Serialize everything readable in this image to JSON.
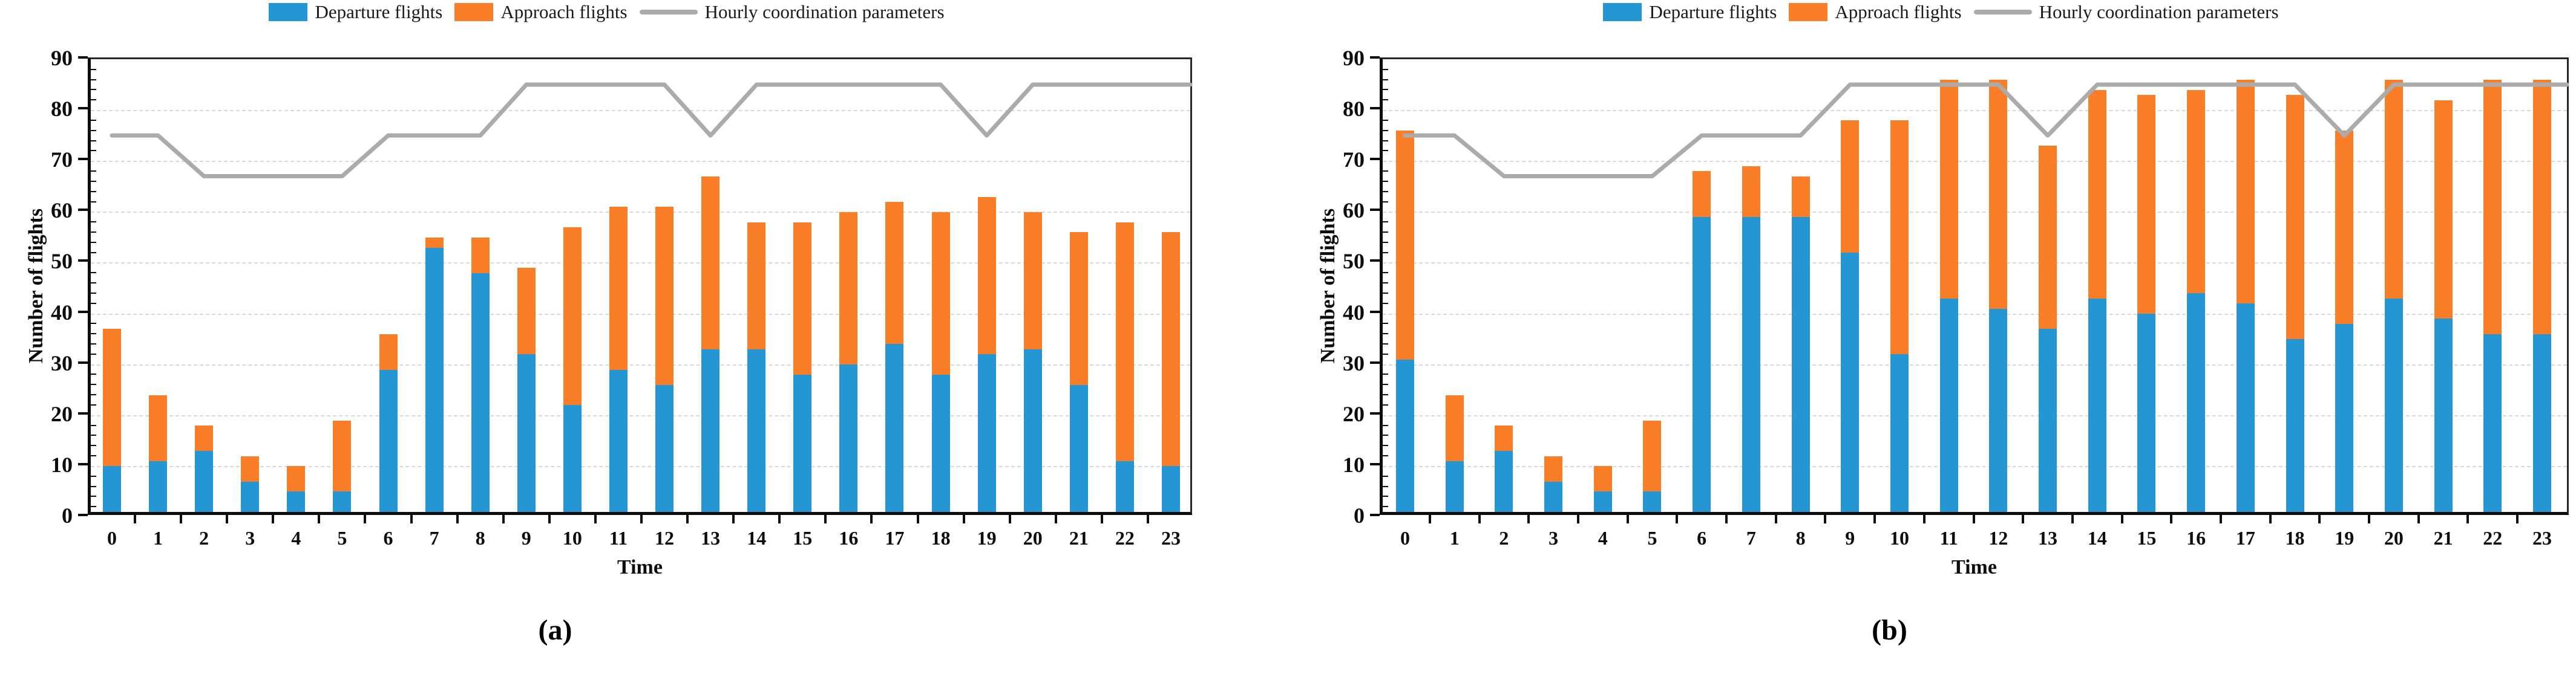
{
  "figure": {
    "background": "#ffffff",
    "accent_colors": {
      "departure_blue": "#2596D4",
      "approach_orange": "#F97E27",
      "parameter_gray": "#ABABAB"
    }
  },
  "chart_data": [
    {
      "type": "bar",
      "subtype": "stacked-bars-with-line",
      "caption": "(a)",
      "xlabel": "Time",
      "ylabel": "Number of flights",
      "ylim": [
        0,
        90
      ],
      "y_ticks": [
        0,
        10,
        20,
        30,
        40,
        50,
        60,
        70,
        80,
        90
      ],
      "grid": "horizontal dashed",
      "legend_position": "top-center",
      "categories": [
        "0",
        "1",
        "2",
        "3",
        "4",
        "5",
        "6",
        "7",
        "8",
        "9",
        "10",
        "11",
        "12",
        "13",
        "14",
        "15",
        "16",
        "17",
        "18",
        "19",
        "20",
        "21",
        "22",
        "23"
      ],
      "series": [
        {
          "name": "Departure flights",
          "type": "bar",
          "stacked": true,
          "color": "#2596D4",
          "values": [
            9,
            10,
            12,
            6,
            4,
            4,
            28,
            52,
            47,
            31,
            21,
            28,
            25,
            32,
            32,
            27,
            29,
            33,
            27,
            31,
            32,
            25,
            10,
            9
          ]
        },
        {
          "name": "Approach flights",
          "type": "bar",
          "stacked": true,
          "color": "#F97E27",
          "values": [
            27,
            13,
            5,
            5,
            5,
            14,
            7,
            2,
            7,
            17,
            35,
            32,
            35,
            34,
            25,
            30,
            30,
            28,
            32,
            31,
            27,
            30,
            47,
            46
          ]
        },
        {
          "name": "Hourly coordination parameters",
          "type": "line",
          "color": "#ABABAB",
          "values": [
            75,
            75,
            67,
            67,
            67,
            67,
            75,
            75,
            75,
            85,
            85,
            85,
            85,
            75,
            85,
            85,
            85,
            85,
            85,
            75,
            85,
            85,
            85,
            85
          ]
        }
      ],
      "stacked_totals": [
        36,
        23,
        17,
        11,
        9,
        18,
        35,
        54,
        54,
        48,
        56,
        60,
        60,
        66,
        57,
        57,
        59,
        61,
        59,
        62,
        59,
        55,
        57,
        55
      ]
    },
    {
      "type": "bar",
      "subtype": "stacked-bars-with-line",
      "caption": "(b)",
      "xlabel": "Time",
      "ylabel": "Number of flights",
      "ylim": [
        0,
        90
      ],
      "y_ticks": [
        0,
        10,
        20,
        30,
        40,
        50,
        60,
        70,
        80,
        90
      ],
      "grid": "horizontal dashed",
      "legend_position": "top-center",
      "categories": [
        "0",
        "1",
        "2",
        "3",
        "4",
        "5",
        "6",
        "7",
        "8",
        "9",
        "10",
        "11",
        "12",
        "13",
        "14",
        "15",
        "16",
        "17",
        "18",
        "19",
        "20",
        "21",
        "22",
        "23"
      ],
      "series": [
        {
          "name": "Departure flights",
          "type": "bar",
          "stacked": true,
          "color": "#2596D4",
          "values": [
            30,
            10,
            12,
            6,
            4,
            4,
            58,
            58,
            58,
            51,
            31,
            42,
            40,
            36,
            42,
            39,
            43,
            41,
            34,
            37,
            42,
            38,
            35,
            35
          ]
        },
        {
          "name": "Approach flights",
          "type": "bar",
          "stacked": true,
          "color": "#F97E27",
          "values": [
            45,
            13,
            5,
            5,
            5,
            14,
            9,
            10,
            8,
            26,
            46,
            43,
            45,
            36,
            41,
            43,
            40,
            44,
            48,
            38,
            43,
            43,
            50,
            50
          ]
        },
        {
          "name": "Hourly coordination parameters",
          "type": "line",
          "color": "#ABABAB",
          "values": [
            75,
            75,
            67,
            67,
            67,
            67,
            75,
            75,
            75,
            85,
            85,
            85,
            85,
            75,
            85,
            85,
            85,
            85,
            85,
            75,
            85,
            85,
            85,
            85
          ]
        }
      ],
      "stacked_totals": [
        75,
        23,
        17,
        11,
        9,
        18,
        67,
        68,
        66,
        77,
        77,
        85,
        85,
        72,
        83,
        82,
        83,
        85,
        82,
        75,
        85,
        81,
        85,
        85
      ]
    }
  ]
}
